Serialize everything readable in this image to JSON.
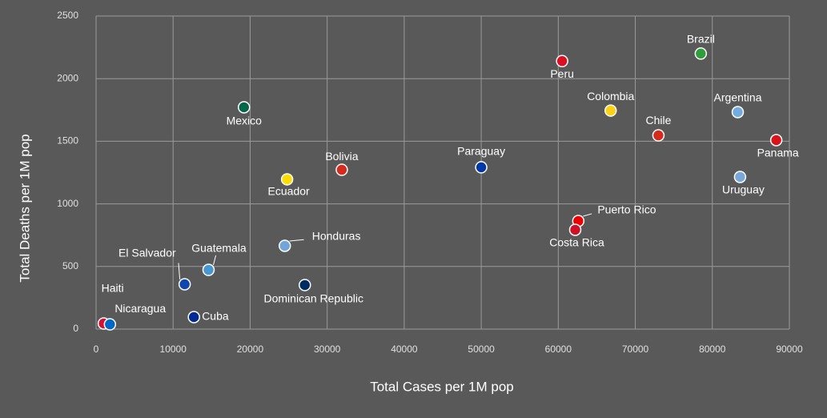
{
  "chart_data": {
    "type": "scatter",
    "x_label": "Total Cases per 1M pop",
    "y_label": "Total Deaths per 1M pop",
    "xlim": [
      0,
      90000
    ],
    "ylim": [
      0,
      2500
    ],
    "xticks": [
      0,
      10000,
      20000,
      30000,
      40000,
      50000,
      60000,
      70000,
      80000,
      90000
    ],
    "yticks": [
      0,
      500,
      1000,
      1500,
      2000,
      2500
    ],
    "grid": true,
    "points": [
      {
        "name": "Brazil",
        "x": 78500,
        "y": 2200,
        "color": "#2e9e3a"
      },
      {
        "name": "Peru",
        "x": 60500,
        "y": 2140,
        "color": "#d91023"
      },
      {
        "name": "Colombia",
        "x": 66800,
        "y": 1745,
        "color": "#fcd116"
      },
      {
        "name": "Argentina",
        "x": 83300,
        "y": 1733,
        "color": "#74acdf"
      },
      {
        "name": "Chile",
        "x": 73000,
        "y": 1547,
        "color": "#d52b1e"
      },
      {
        "name": "Panama",
        "x": 88300,
        "y": 1509,
        "color": "#da121a"
      },
      {
        "name": "Uruguay",
        "x": 83600,
        "y": 1215,
        "color": "#7aa7d8"
      },
      {
        "name": "Paraguay",
        "x": 50000,
        "y": 1292,
        "color": "#0038a8"
      },
      {
        "name": "Puerto Rico",
        "x": 62600,
        "y": 863,
        "color": "#ed0000"
      },
      {
        "name": "Costa Rica",
        "x": 62200,
        "y": 793,
        "color": "#ce1126"
      },
      {
        "name": "Mexico",
        "x": 19200,
        "y": 1771,
        "color": "#006847"
      },
      {
        "name": "Bolivia",
        "x": 31900,
        "y": 1272,
        "color": "#d52b1e"
      },
      {
        "name": "Ecuador",
        "x": 24800,
        "y": 1196,
        "color": "#ffdd00"
      },
      {
        "name": "Honduras",
        "x": 24500,
        "y": 665,
        "color": "#73a6d8"
      },
      {
        "name": "Guatemala",
        "x": 14600,
        "y": 473,
        "color": "#4997d0"
      },
      {
        "name": "El Salvador",
        "x": 11500,
        "y": 358,
        "color": "#0f47af"
      },
      {
        "name": "Dominican Republic",
        "x": 27100,
        "y": 352,
        "color": "#002d62"
      },
      {
        "name": "Cuba",
        "x": 12700,
        "y": 96,
        "color": "#002a8f"
      },
      {
        "name": "Haiti",
        "x": 1000,
        "y": 45,
        "color": "#d21034"
      },
      {
        "name": "Nicaragua",
        "x": 1800,
        "y": 38,
        "color": "#0067c6"
      }
    ]
  }
}
